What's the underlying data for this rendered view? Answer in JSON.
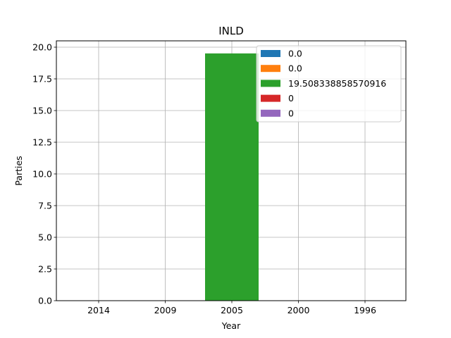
{
  "chart_data": {
    "type": "bar",
    "title": "INLD",
    "xlabel": "Year",
    "ylabel": "Parties",
    "categories": [
      "2014",
      "2009",
      "2005",
      "2000",
      "1996"
    ],
    "ylim": [
      0,
      20.5
    ],
    "yticks": [
      "0.0",
      "2.5",
      "5.0",
      "7.5",
      "10.0",
      "12.5",
      "15.0",
      "17.5",
      "20.0"
    ],
    "grid": true,
    "legend_position": "top-right",
    "series": [
      {
        "name": "0.0",
        "color": "#1f77b4",
        "values": [
          0.0,
          0,
          0,
          0,
          0
        ]
      },
      {
        "name": "0.0",
        "color": "#ff7f0e",
        "values": [
          0,
          0.0,
          0,
          0,
          0
        ]
      },
      {
        "name": "19.508338858570916",
        "color": "#2ca02c",
        "values": [
          0,
          0,
          19.508338858570916,
          0,
          0
        ]
      },
      {
        "name": "0",
        "color": "#d62728",
        "values": [
          0,
          0,
          0,
          0,
          0
        ]
      },
      {
        "name": "0",
        "color": "#9467bd",
        "values": [
          0,
          0,
          0,
          0,
          0
        ]
      }
    ]
  }
}
